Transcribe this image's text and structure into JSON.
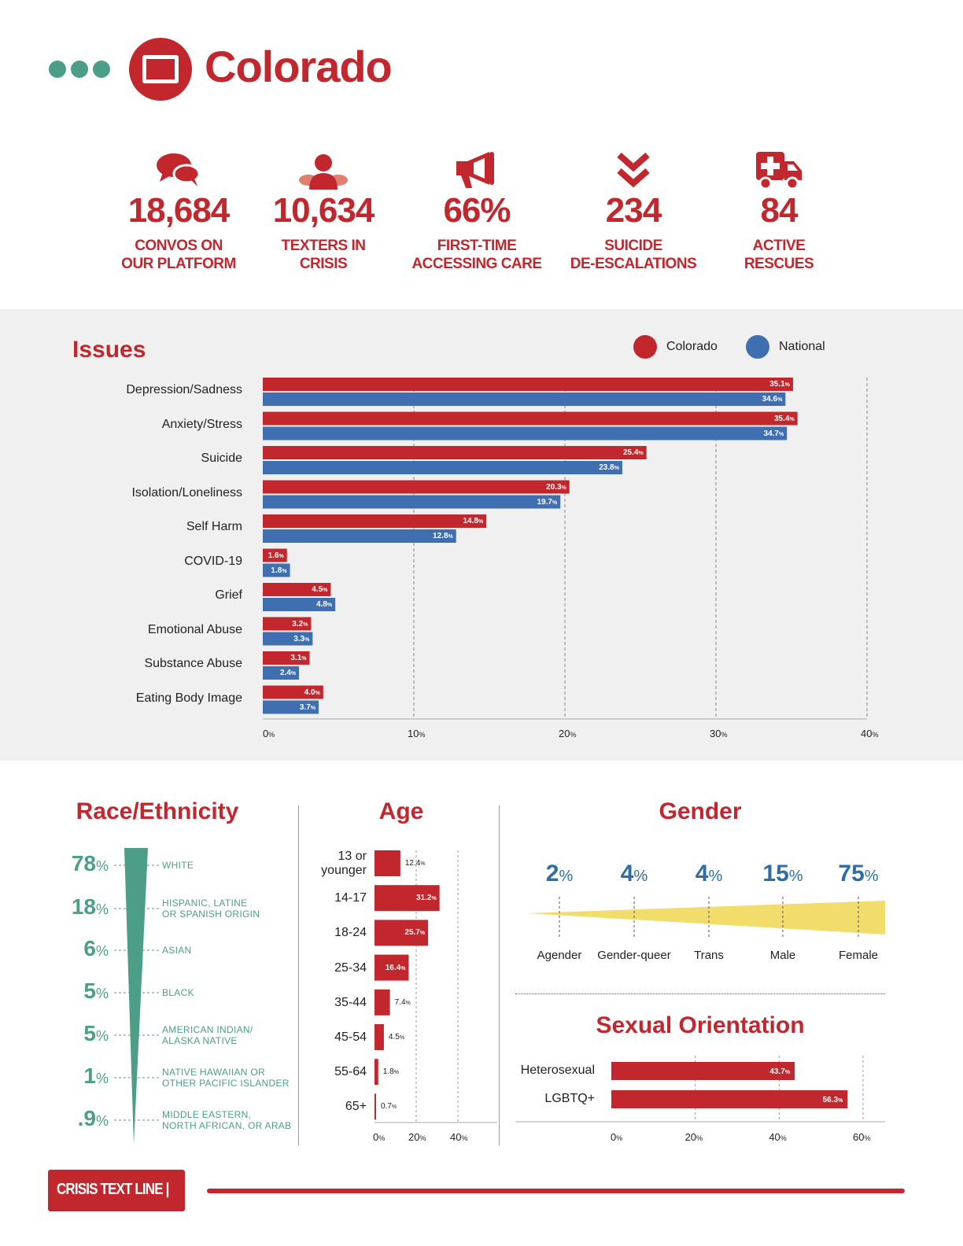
{
  "header": {
    "title": "Colorado"
  },
  "stats": [
    {
      "value": "18,684",
      "label_line1": "CONVOS ON",
      "label_line2": "OUR PLATFORM",
      "icon": "chat-bubbles-icon"
    },
    {
      "value": "10,634",
      "label_line1": "TEXTERS IN",
      "label_line2": "CRISIS",
      "icon": "person-icon"
    },
    {
      "value": "66%",
      "label_line1": "FIRST-TIME",
      "label_line2": "ACCESSING CARE",
      "icon": "megaphone-icon"
    },
    {
      "value": "234",
      "label_line1": "SUICIDE",
      "label_line2": "DE-ESCALATIONS",
      "icon": "double-chevron-down-icon"
    },
    {
      "value": "84",
      "label_line1": "ACTIVE",
      "label_line2": "RESCUES",
      "icon": "ambulance-icon"
    }
  ],
  "colors": {
    "red": "#c1272d",
    "blue": "#3f6fb0",
    "green": "#4d9e86",
    "yellow": "#f2dc6b",
    "gender_blue": "#2e6da8"
  },
  "chart_data": [
    {
      "type": "bar",
      "orientation": "horizontal",
      "title": "Issues",
      "categories": [
        "Depression/Sadness",
        "Anxiety/Stress",
        "Suicide",
        "Isolation/Loneliness",
        "Self Harm",
        "COVID-19",
        "Grief",
        "Emotional Abuse",
        "Substance Abuse",
        "Eating Body Image"
      ],
      "series": [
        {
          "name": "Colorado",
          "color": "#c1272d",
          "values": [
            35.1,
            35.4,
            25.4,
            20.3,
            14.8,
            1.6,
            4.5,
            3.2,
            3.1,
            4.0
          ]
        },
        {
          "name": "National",
          "color": "#3f6fb0",
          "values": [
            34.6,
            34.7,
            23.8,
            19.7,
            12.8,
            1.8,
            4.8,
            3.3,
            2.4,
            3.7
          ]
        }
      ],
      "xlim": [
        0,
        40
      ],
      "xticks": [
        "0",
        "10",
        "20",
        "30",
        "40"
      ],
      "tick_unit": "%",
      "legend": "top-right",
      "grid": true
    },
    {
      "type": "bar",
      "title": "Race/Ethnicity",
      "categories": [
        {
          "pct": "78",
          "unit": "%",
          "line1": "WHITE",
          "line2": ""
        },
        {
          "pct": "18",
          "unit": "%",
          "line1": "HISPANIC, LATINE",
          "line2": "OR SPANISH ORIGIN"
        },
        {
          "pct": "6",
          "unit": "%",
          "line1": "ASIAN",
          "line2": ""
        },
        {
          "pct": "5",
          "unit": "%",
          "line1": "BLACK",
          "line2": ""
        },
        {
          "pct": "5",
          "unit": "%",
          "line1": "AMERICAN INDIAN/",
          "line2": "ALASKA NATIVE"
        },
        {
          "pct": "1",
          "unit": "%",
          "line1": "NATIVE HAWAIIAN OR",
          "line2": "OTHER PACIFIC ISLANDER"
        },
        {
          "pct": ".9",
          "unit": "%",
          "line1": "MIDDLE EASTERN,",
          "line2": "NORTH AFRICAN, OR ARAB"
        }
      ]
    },
    {
      "type": "bar",
      "orientation": "horizontal",
      "title": "Age",
      "categories": [
        {
          "line1": "13 or",
          "line2": "younger"
        },
        {
          "line1": "14-17",
          "line2": ""
        },
        {
          "line1": "18-24",
          "line2": ""
        },
        {
          "line1": "25-34",
          "line2": ""
        },
        {
          "line1": "35-44",
          "line2": ""
        },
        {
          "line1": "45-54",
          "line2": ""
        },
        {
          "line1": "55-64",
          "line2": ""
        },
        {
          "line1": "65+",
          "line2": ""
        }
      ],
      "values": [
        12.4,
        31.2,
        25.7,
        16.4,
        7.4,
        4.5,
        1.8,
        0.7
      ],
      "xlim": [
        0,
        40
      ],
      "xticks": [
        "0",
        "20",
        "40"
      ],
      "tick_unit": "%"
    },
    {
      "type": "bar",
      "title": "Gender",
      "categories": [
        "Agender",
        "Gender-queer",
        "Trans",
        "Male",
        "Female"
      ],
      "values": [
        "2",
        "4",
        "4",
        "15",
        "75"
      ],
      "unit": "%"
    },
    {
      "type": "bar",
      "orientation": "horizontal",
      "title": "Sexual Orientation",
      "categories": [
        "Heterosexual",
        "LGBTQ+"
      ],
      "values": [
        43.7,
        56.3
      ],
      "xlim": [
        0,
        60
      ],
      "xticks": [
        "0",
        "20",
        "40",
        "60"
      ],
      "tick_unit": "%"
    }
  ],
  "footer": {
    "brand": "CRISIS TEXT LINE |"
  }
}
